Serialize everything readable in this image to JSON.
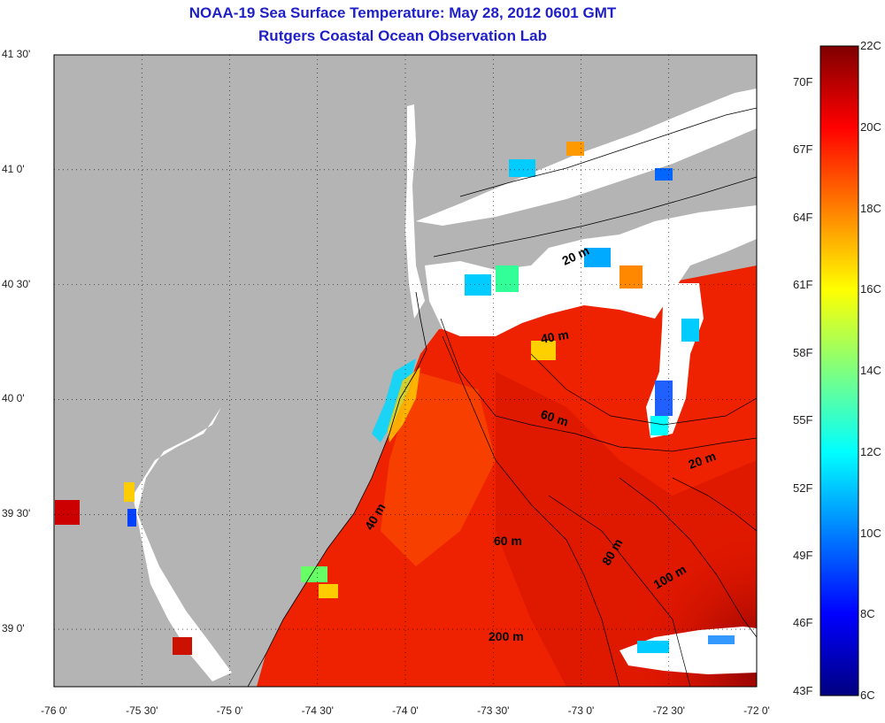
{
  "title": {
    "line1": "NOAA-19 Sea Surface Temperature:  May 28, 2012 0601 GMT",
    "line2": "Rutgers Coastal Ocean Observation Lab"
  },
  "map": {
    "lat_ticks": [
      "41 30'",
      "41 0'",
      "40 30'",
      "40 0'",
      "39 30'",
      "39 0'"
    ],
    "lon_ticks": [
      "-76 0'",
      "-75 30'",
      "-75 0'",
      "-74 30'",
      "-74 0'",
      "-73 30'",
      "-73 0'",
      "-72 30'",
      "-72 0'"
    ],
    "lat_range": [
      38.75,
      41.5
    ],
    "lon_range": [
      -76,
      -72
    ],
    "grid": "dotted",
    "land_color": "#b4b4b4",
    "cloud_color": "#ffffff",
    "contour_labels": [
      "20 m",
      "40 m",
      "60 m",
      "20 m",
      "40 m",
      "60 m",
      "80 m",
      "100 m",
      "200 m"
    ]
  },
  "colorbar": {
    "celsius_labels": [
      "22C",
      "20C",
      "18C",
      "16C",
      "14C",
      "12C",
      "10C",
      "8C",
      "6C"
    ],
    "fahrenheit_labels": [
      "70F",
      "67F",
      "64F",
      "61F",
      "58F",
      "55F",
      "52F",
      "49F",
      "46F",
      "43F"
    ],
    "range_c": [
      6,
      22
    ],
    "colormap": [
      "#7f0000",
      "#ff0000",
      "#ff7f00",
      "#ffff00",
      "#7fff7f",
      "#00ffff",
      "#007fff",
      "#0000ff",
      "#00007f"
    ]
  }
}
